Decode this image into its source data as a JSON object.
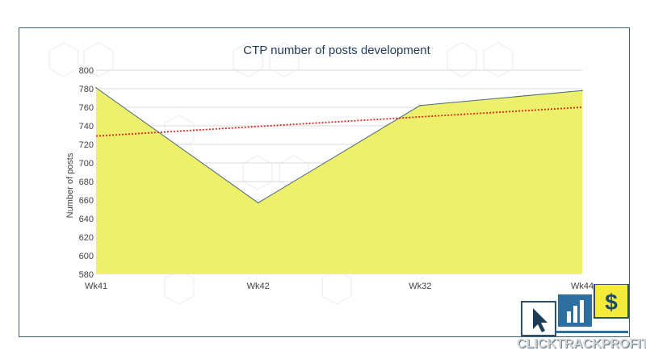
{
  "chart_data": {
    "type": "area",
    "title": "CTP number of posts development",
    "xlabel": "",
    "ylabel": "Number of posts",
    "categories": [
      "Wk41",
      "Wk42",
      "Wk32",
      "Wk44"
    ],
    "series": [
      {
        "values": [
          781,
          657,
          762,
          778
        ]
      }
    ],
    "trendline": {
      "type": "linear",
      "start": 729,
      "end": 760,
      "style": "dotted",
      "color": "#e02020"
    },
    "ylim": [
      580,
      800
    ],
    "yticks": [
      580,
      600,
      620,
      640,
      660,
      680,
      700,
      720,
      740,
      760,
      780,
      800
    ],
    "grid": true,
    "legend": "none",
    "colors": {
      "area_fill": "#eeef6a",
      "area_line": "#4a6a7a",
      "trend": "#e02020",
      "grid": "#d9d9d9",
      "border": "#3a5f7a"
    }
  },
  "logo": {
    "text": "CLICKTRACKPROFIT",
    "dollar": "$"
  }
}
